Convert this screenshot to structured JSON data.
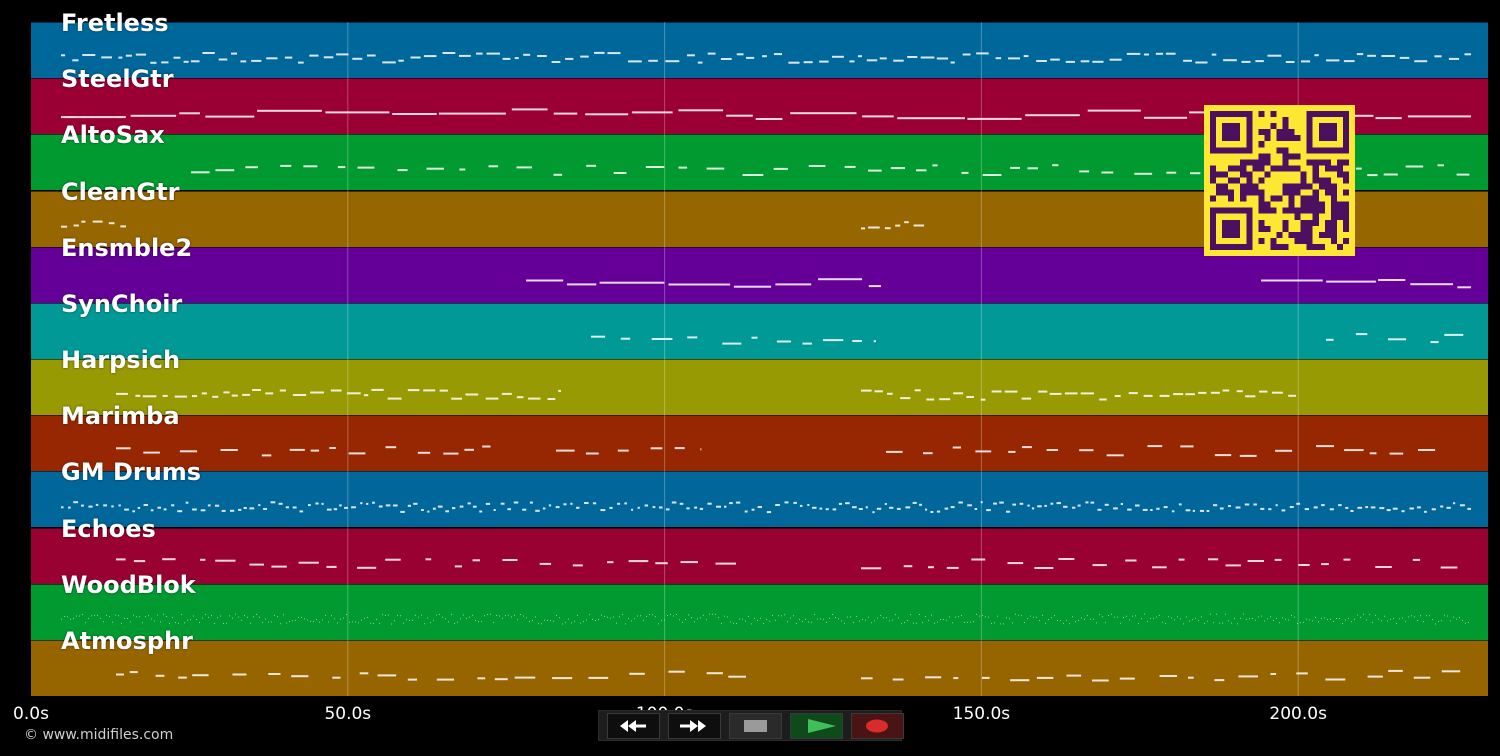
{
  "piano_roll": {
    "tracks": [
      {
        "name": "Fretless",
        "color": "#00679b"
      },
      {
        "name": "SteelGtr",
        "color": "#9a0033"
      },
      {
        "name": "AltoSax",
        "color": "#019a30"
      },
      {
        "name": "CleanGtr",
        "color": "#966600"
      },
      {
        "name": "Ensmble2",
        "color": "#640098"
      },
      {
        "name": "SynChoir",
        "color": "#009996"
      },
      {
        "name": "Harpsich",
        "color": "#979a03"
      },
      {
        "name": "Marimba",
        "color": "#972702"
      },
      {
        "name": "GM Drums",
        "color": "#01669a"
      },
      {
        "name": "Echoes",
        "color": "#9a0133"
      },
      {
        "name": "WoodBlok",
        "color": "#009a31"
      },
      {
        "name": "Atmosphr",
        "color": "#966500"
      }
    ],
    "timeline": {
      "ticks": [
        "0.0s",
        "50.0s",
        "100.0s",
        "150.0s",
        "200.0s"
      ]
    }
  },
  "transport": {
    "buttons": [
      {
        "icon": "rewind-icon"
      },
      {
        "icon": "fast-forward-icon"
      },
      {
        "icon": "stop-icon"
      },
      {
        "icon": "play-icon"
      },
      {
        "icon": "record-icon"
      }
    ]
  },
  "copyright": "© www.midifiles.com",
  "qr": {
    "fg": "#4b1060",
    "bg": "#fce833"
  }
}
